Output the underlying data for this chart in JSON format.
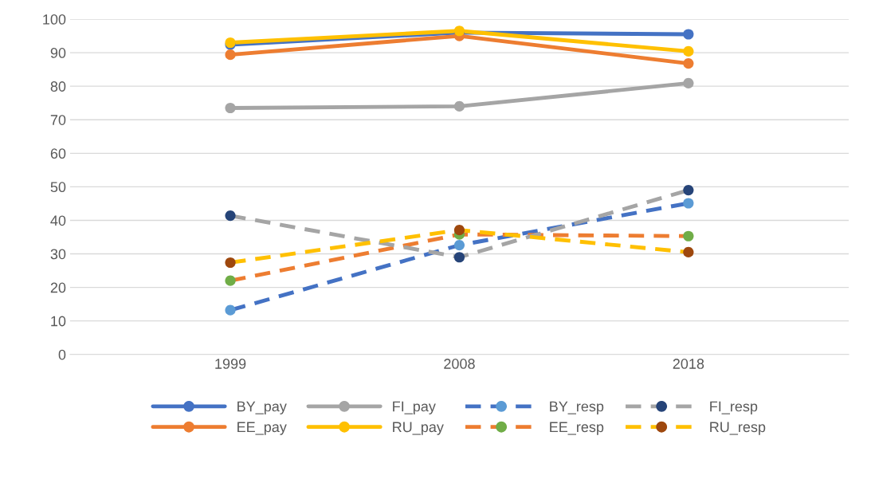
{
  "chart_data": {
    "type": "line",
    "categories": [
      "1999",
      "2008",
      "2018"
    ],
    "ylim": [
      0,
      100
    ],
    "yticks": [
      0,
      10,
      20,
      30,
      40,
      50,
      60,
      70,
      80,
      90,
      100
    ],
    "grid": "y",
    "legend": "bottom",
    "marker": "circle",
    "series": [
      {
        "name": "BY_pay",
        "color": "#4472c4",
        "line_style": "solid",
        "values": [
          92.4,
          96,
          95.5
        ]
      },
      {
        "name": "EE_pay",
        "color": "#ed7d31",
        "line_style": "solid",
        "values": [
          89.4,
          95,
          86.8
        ]
      },
      {
        "name": "FI_pay",
        "color": "#a5a5a5",
        "line_style": "solid",
        "values": [
          73.5,
          74,
          80.9
        ]
      },
      {
        "name": "RU_pay",
        "color": "#ffc000",
        "line_style": "solid",
        "values": [
          93,
          96.5,
          90.4
        ]
      },
      {
        "name": "BY_resp",
        "color": "#4472c4",
        "colors": [
          "#5b9bd5",
          "#5b9bd5",
          "#5b9bd5"
        ],
        "line_style": "dashed",
        "values": [
          13.2,
          32.6,
          45.1
        ]
      },
      {
        "name": "EE_resp",
        "color": "#ed7d31",
        "colors": [
          "#70ad47",
          "#70ad47",
          "#70ad47"
        ],
        "line_style": "dashed",
        "values": [
          22,
          35.8,
          35.3
        ]
      },
      {
        "name": "FI_resp",
        "color": "#a5a5a5",
        "colors": [
          "#264478",
          "#264478",
          "#264478"
        ],
        "line_style": "dashed",
        "values": [
          41.4,
          29,
          49
        ]
      },
      {
        "name": "RU_resp",
        "color": "#ffc000",
        "colors": [
          "#9e480e",
          "#9e480e",
          "#9e480e"
        ],
        "line_style": "dashed",
        "values": [
          27.4,
          37.1,
          30.5
        ]
      }
    ]
  }
}
